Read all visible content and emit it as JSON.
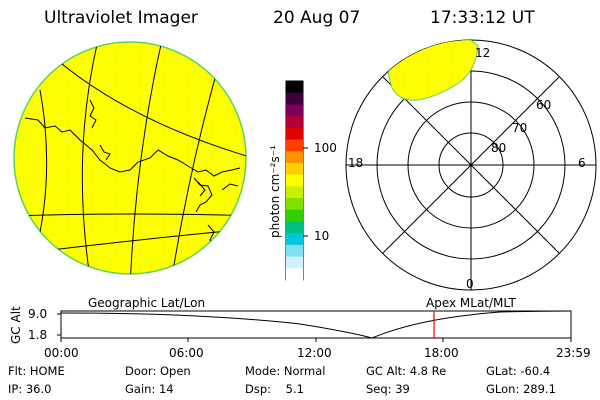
{
  "header": {
    "instrument": "Ultraviolet Imager",
    "date": "20 Aug 07",
    "time": "17:33:12 UT"
  },
  "colorbar": {
    "unit_label": "photon cm⁻²s⁻¹",
    "ticks": [
      "100",
      "10"
    ],
    "colors": [
      "#000000",
      "#3b003b",
      "#7a005a",
      "#b0003a",
      "#e00000",
      "#ff4000",
      "#ff9000",
      "#ffd000",
      "#ffff00",
      "#c8f000",
      "#80e000",
      "#30d000",
      "#00c080",
      "#00c8d8",
      "#80e0f0",
      "#d0f0ff",
      "#ffffff"
    ]
  },
  "polar_plot": {
    "mlt_labels": {
      "top": "12",
      "left": "18",
      "right": "6",
      "bottom": "0"
    },
    "lat_labels": [
      "60",
      "70",
      "80"
    ]
  },
  "timeline": {
    "left_title": "Geographic Lat/Lon",
    "right_title": "Apex MLat/MLT",
    "y_axis_label": "GC Alt",
    "y_ticks": [
      "9.0",
      "1.8"
    ],
    "x_ticks": [
      "00:00",
      "06:00",
      "12:00",
      "18:00",
      "23:59"
    ],
    "current_time_fraction": 0.7314
  },
  "status": {
    "row1": [
      {
        "label": "Flt:",
        "value": "HOME"
      },
      {
        "label": "Door:",
        "value": "Open"
      },
      {
        "label": "Mode:",
        "value": "Normal"
      },
      {
        "label": "GC Alt:",
        "value": "4.8 Re"
      },
      {
        "label": "GLat:",
        "value": "-60.4"
      }
    ],
    "row2": [
      {
        "label": "IP:",
        "value": "36.0"
      },
      {
        "label": "Gain:",
        "value": "14"
      },
      {
        "label": "Dsp:",
        "value": "5.1"
      },
      {
        "label": "Seq:",
        "value": "39"
      },
      {
        "label": "GLon:",
        "value": "289.1"
      }
    ]
  },
  "colors": {
    "disk_fill": "#ffff00",
    "disk_edge": "#5bd35b",
    "marker": "#ff0000"
  }
}
